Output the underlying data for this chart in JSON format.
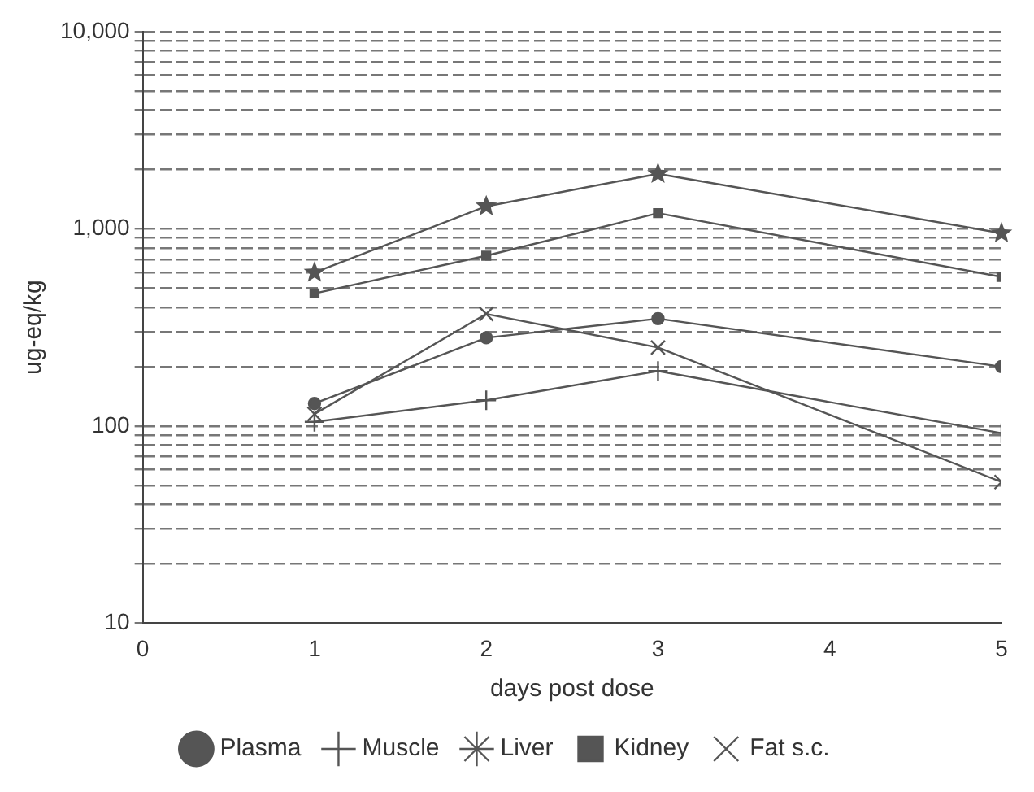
{
  "chart_data": {
    "type": "line",
    "xlabel": "days post dose",
    "ylabel": "ug-eq/kg",
    "log": "y",
    "grid": "y",
    "legend": "bottom",
    "line_style": "solid",
    "x": [
      1,
      2,
      3,
      5
    ],
    "xlim": [
      0,
      5
    ],
    "xticks": [
      0,
      1,
      2,
      3,
      4,
      5
    ],
    "ylim": [
      10,
      10000
    ],
    "yticks": [
      10,
      {
        "value": 20,
        "label": null
      },
      {
        "value": 30,
        "label": null
      },
      {
        "value": 40,
        "label": null
      },
      {
        "value": 50,
        "label": null
      },
      {
        "value": 60,
        "label": null
      },
      {
        "value": 70,
        "label": null
      },
      {
        "value": 80,
        "label": null
      },
      {
        "value": 90,
        "label": null
      },
      100,
      {
        "value": 200,
        "label": null
      },
      {
        "value": 300,
        "label": null
      },
      {
        "value": 400,
        "label": null
      },
      {
        "value": 500,
        "label": null
      },
      {
        "value": 600,
        "label": null
      },
      {
        "value": 700,
        "label": null
      },
      {
        "value": 800,
        "label": null
      },
      {
        "value": 900,
        "label": null
      },
      {
        "value": 1000,
        "label": "1,000"
      },
      {
        "value": 2000,
        "label": null
      },
      {
        "value": 3000,
        "label": null
      },
      {
        "value": 4000,
        "label": null
      },
      {
        "value": 5000,
        "label": null
      },
      {
        "value": 6000,
        "label": null
      },
      {
        "value": 7000,
        "label": null
      },
      {
        "value": 8000,
        "label": null
      },
      {
        "value": 9000,
        "label": null
      },
      {
        "value": 10000,
        "label": "10,000"
      }
    ],
    "series": [
      {
        "name": "Plasma",
        "color": "#555555",
        "marker": "circle",
        "values": [
          130,
          280,
          350,
          200
        ]
      },
      {
        "name": "Muscle",
        "color": "#555555",
        "marker": "cross",
        "values": [
          105,
          135,
          190,
          92
        ]
      },
      {
        "name": "Liver",
        "color": "#555555",
        "marker": "star",
        "values": [
          600,
          1300,
          1900,
          950
        ]
      },
      {
        "name": "Kidney",
        "color": "#555555",
        "marker": "square",
        "values": [
          470,
          730,
          1200,
          570
        ]
      },
      {
        "name": "Fat s.c.",
        "color": "#555555",
        "marker": "x",
        "values": [
          115,
          370,
          250,
          52
        ]
      }
    ]
  }
}
